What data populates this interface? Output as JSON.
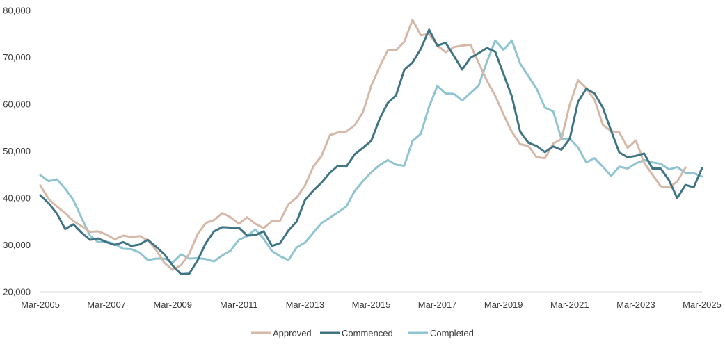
{
  "chart_data": {
    "type": "line",
    "title": "",
    "xlabel": "",
    "ylabel": "",
    "ylim": [
      20000,
      80000
    ],
    "yticks": [
      20000,
      30000,
      40000,
      50000,
      60000,
      70000,
      80000
    ],
    "ytick_labels": [
      "20,000",
      "30,000",
      "40,000",
      "50,000",
      "60,000",
      "70,000",
      "80,000"
    ],
    "x_start_label": "Mar-2005",
    "x_period": "quarterly",
    "xtick_index": [
      0,
      8,
      16,
      24,
      32,
      40,
      48,
      56,
      64,
      72,
      80
    ],
    "xtick_labels": [
      "Mar-2005",
      "Mar-2007",
      "Mar-2009",
      "Mar-2011",
      "Mar-2013",
      "Mar-2015",
      "Mar-2017",
      "Mar-2019",
      "Mar-2021",
      "Mar-2023",
      "Mar-2025"
    ],
    "grid": false,
    "legend_position": "bottom-center",
    "series": [
      {
        "name": "Approved",
        "color": "#d5b8a7",
        "values": [
          42700,
          39800,
          38200,
          36800,
          35100,
          34000,
          32800,
          32900,
          32200,
          31200,
          32000,
          31700,
          31900,
          31000,
          28900,
          26200,
          24700,
          25700,
          28100,
          32300,
          34700,
          35300,
          36800,
          35900,
          34500,
          35900,
          34500,
          33600,
          35100,
          35200,
          38700,
          40100,
          42700,
          46700,
          49000,
          53400,
          54000,
          54200,
          55500,
          58300,
          63900,
          67900,
          71500,
          71500,
          73300,
          78000,
          74700,
          75000,
          72500,
          71100,
          72200,
          72500,
          72700,
          68800,
          65000,
          61800,
          57800,
          54100,
          51500,
          51100,
          48700,
          48500,
          51600,
          52600,
          59900,
          65100,
          63400,
          61000,
          55600,
          54300,
          54000,
          50700,
          52300,
          47500,
          45000,
          42500,
          42300,
          43500,
          46500
        ]
      },
      {
        "name": "Commenced",
        "color": "#3e7484",
        "values": [
          40600,
          38900,
          36700,
          33400,
          34400,
          32600,
          31100,
          31400,
          30600,
          30000,
          30600,
          29800,
          30100,
          31100,
          29600,
          28000,
          25600,
          23800,
          23900,
          26700,
          30400,
          32900,
          33800,
          33700,
          33700,
          32000,
          32100,
          32900,
          29800,
          30400,
          33100,
          35000,
          39600,
          41600,
          43300,
          45400,
          46900,
          46700,
          49300,
          50700,
          52200,
          56800,
          60300,
          61900,
          67300,
          68900,
          71800,
          75900,
          72500,
          73100,
          70300,
          67400,
          69900,
          70900,
          72000,
          71200,
          66400,
          61700,
          54200,
          51800,
          51100,
          49800,
          51000,
          50300,
          52600,
          60500,
          63300,
          62300,
          59300,
          54400,
          49700,
          48700,
          49000,
          49500,
          46300,
          46300,
          43800,
          40000,
          42800,
          42300,
          46400
        ]
      },
      {
        "name": "Completed",
        "color": "#90c4d1",
        "values": [
          44900,
          43600,
          44000,
          42000,
          39600,
          35700,
          32000,
          30600,
          30700,
          30200,
          29200,
          29100,
          28400,
          26800,
          27100,
          27100,
          26300,
          28000,
          27100,
          27200,
          27000,
          26500,
          27800,
          28800,
          31100,
          31900,
          33300,
          31300,
          28700,
          27600,
          26800,
          29500,
          30500,
          32600,
          34700,
          35800,
          37000,
          38200,
          41500,
          43600,
          45500,
          47000,
          48100,
          47100,
          46900,
          52200,
          53700,
          59500,
          63900,
          62300,
          62200,
          60800,
          62400,
          64000,
          69100,
          73600,
          71600,
          73600,
          68700,
          66000,
          63300,
          59300,
          58500,
          52600,
          52700,
          50800,
          47600,
          48500,
          46700,
          44700,
          46700,
          46300,
          47400,
          48100,
          47600,
          47300,
          46100,
          46600,
          45400,
          45300,
          44600
        ]
      }
    ]
  }
}
